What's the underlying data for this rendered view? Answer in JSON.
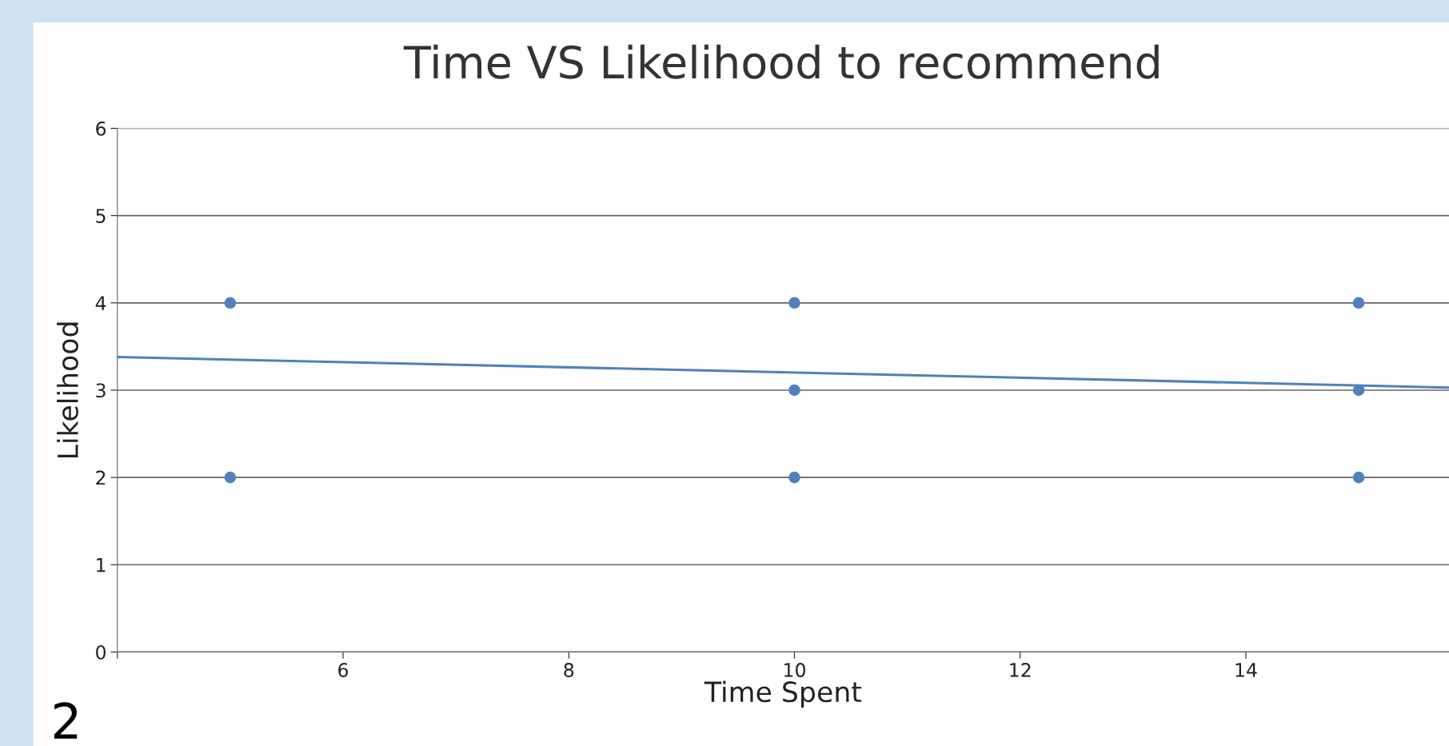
{
  "chart_data": {
    "type": "scatter",
    "title": "Time VS Likelihood to recommend",
    "xlabel": "Time Spent",
    "ylabel": "Likelihood",
    "xlim": [
      4,
      15.8
    ],
    "xticks": [
      {
        "value": 4,
        "label": null
      },
      6,
      8,
      10,
      12,
      14
    ],
    "ylim": [
      0,
      6
    ],
    "yticks": [
      0,
      1,
      2,
      3,
      4,
      5,
      6
    ],
    "grid": "y",
    "legend": false,
    "series": [
      {
        "color": "#4f81bd",
        "marker": "circle",
        "x": [
          5,
          5,
          10,
          10,
          10,
          15,
          15,
          15
        ],
        "values": [
          4,
          2,
          4,
          3,
          2,
          4,
          3,
          2
        ]
      },
      {
        "type": "line",
        "color": "#4f81bd",
        "x": [
          4,
          15.8
        ],
        "values": [
          3.38,
          3.03
        ]
      }
    ],
    "annotations": [
      "2"
    ]
  }
}
